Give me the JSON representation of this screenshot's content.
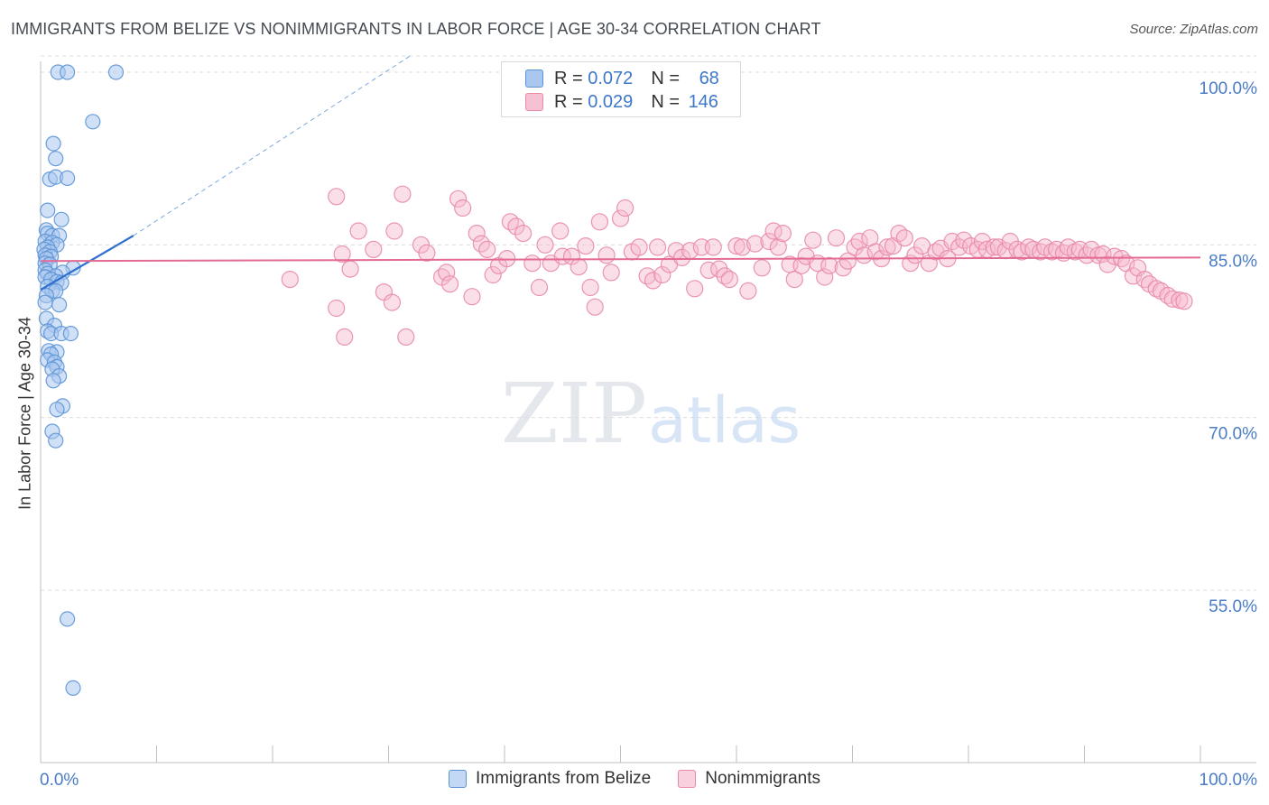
{
  "title": "IMMIGRANTS FROM BELIZE VS NONIMMIGRANTS IN LABOR FORCE | AGE 30-34 CORRELATION CHART",
  "source": "Source: ZipAtlas.com",
  "watermark": {
    "zip": "ZIP",
    "atlas": "atlas"
  },
  "colors": {
    "blue_fill": "#a9c7ef",
    "blue_stroke": "#5b93d6",
    "blue_line": "#2f6fcf",
    "pink_fill": "#f6b8cb",
    "pink_stroke": "#e88aa8",
    "pink_line": "#e36b93",
    "axis_text": "#4a7cc7",
    "grid": "#dcdcdc"
  },
  "legend_top": {
    "rows": [
      {
        "series": "blue",
        "r_label": "R = ",
        "r_value": "0.072",
        "n_label": "N = ",
        "n_value": "68"
      },
      {
        "series": "pink",
        "r_label": "R = ",
        "r_value": "0.029",
        "n_label": "N = ",
        "n_value": "146"
      }
    ]
  },
  "chart_data": {
    "type": "scatter",
    "title": "IMMIGRANTS FROM BELIZE VS NONIMMIGRANTS IN LABOR FORCE | AGE 30-34 CORRELATION CHART",
    "xlabel": "",
    "ylabel": "In Labor Force | Age 30-34",
    "xlim": [
      0,
      100
    ],
    "ylim": [
      40,
      101.5
    ],
    "x_tick_labels": [
      "0.0%",
      "100.0%"
    ],
    "y_ticks": [
      100,
      85,
      70,
      55
    ],
    "y_tick_labels": [
      "100.0%",
      "85.0%",
      "70.0%",
      "55.0%"
    ],
    "grid": true,
    "legend": [
      "Immigrants from Belize",
      "Nonimmigrants"
    ],
    "series": [
      {
        "name": "Immigrants from Belize",
        "color": "blue",
        "R": 0.072,
        "N": 68,
        "trend": {
          "x": [
            0,
            8
          ],
          "y": [
            81.1,
            85.8
          ]
        },
        "trend_extension": {
          "x": [
            8,
            32
          ],
          "y": [
            85.8,
            101.5
          ]
        },
        "points": [
          [
            1.5,
            100
          ],
          [
            2.3,
            100
          ],
          [
            6.5,
            100
          ],
          [
            4.5,
            95.7
          ],
          [
            1.1,
            93.8
          ],
          [
            1.3,
            92.5
          ],
          [
            0.8,
            90.7
          ],
          [
            1.3,
            90.9
          ],
          [
            2.3,
            90.8
          ],
          [
            0.6,
            88
          ],
          [
            1.8,
            87.2
          ],
          [
            0.5,
            86.3
          ],
          [
            0.6,
            86
          ],
          [
            1.0,
            85.8
          ],
          [
            1.6,
            85.8
          ],
          [
            0.4,
            85.3
          ],
          [
            1.0,
            85.2
          ],
          [
            1.4,
            85
          ],
          [
            0.6,
            84.8
          ],
          [
            0.3,
            84.6
          ],
          [
            0.8,
            84.4
          ],
          [
            0.4,
            84.1
          ],
          [
            0.9,
            84
          ],
          [
            0.5,
            83.8
          ],
          [
            0.4,
            83.4
          ],
          [
            0.8,
            83.3
          ],
          [
            2.8,
            83
          ],
          [
            0.4,
            82.8
          ],
          [
            0.6,
            82.5
          ],
          [
            1.9,
            82.6
          ],
          [
            1.3,
            82.3
          ],
          [
            0.4,
            82.2
          ],
          [
            0.9,
            82
          ],
          [
            1.4,
            81.8
          ],
          [
            1.8,
            81.7
          ],
          [
            0.6,
            81.4
          ],
          [
            1.0,
            81
          ],
          [
            1.3,
            81
          ],
          [
            0.5,
            80.6
          ],
          [
            0.4,
            80
          ],
          [
            1.6,
            79.8
          ],
          [
            0.5,
            78.6
          ],
          [
            1.2,
            78
          ],
          [
            0.6,
            77.5
          ],
          [
            0.9,
            77.3
          ],
          [
            1.8,
            77.3
          ],
          [
            2.6,
            77.3
          ],
          [
            0.7,
            75.8
          ],
          [
            1.4,
            75.7
          ],
          [
            0.9,
            75.5
          ],
          [
            0.6,
            75
          ],
          [
            1.2,
            74.8
          ],
          [
            1.4,
            74.4
          ],
          [
            1.0,
            74.2
          ],
          [
            1.6,
            73.6
          ],
          [
            1.1,
            73.2
          ],
          [
            1.9,
            71
          ],
          [
            1.4,
            70.7
          ],
          [
            1.0,
            68.8
          ],
          [
            1.3,
            68
          ],
          [
            2.3,
            52.5
          ],
          [
            2.8,
            46.5
          ]
        ]
      },
      {
        "name": "Nonimmigrants",
        "color": "pink",
        "R": 0.029,
        "N": 146,
        "trend": {
          "x": [
            0,
            100
          ],
          "y": [
            83.6,
            83.9
          ]
        },
        "points": [
          [
            21.5,
            82
          ],
          [
            25.5,
            89.2
          ],
          [
            26,
            84.2
          ],
          [
            26.7,
            82.9
          ],
          [
            25.5,
            79.5
          ],
          [
            26.2,
            77
          ],
          [
            27.4,
            86.2
          ],
          [
            28.7,
            84.6
          ],
          [
            29.6,
            80.9
          ],
          [
            30.3,
            80
          ],
          [
            30.5,
            86.2
          ],
          [
            31.2,
            89.4
          ],
          [
            31.5,
            77
          ],
          [
            32.8,
            85
          ],
          [
            33.3,
            84.3
          ],
          [
            34.6,
            82.2
          ],
          [
            35,
            82.6
          ],
          [
            35.3,
            81.6
          ],
          [
            36,
            89
          ],
          [
            36.4,
            88.2
          ],
          [
            37.2,
            80.5
          ],
          [
            37.6,
            86
          ],
          [
            38,
            85.1
          ],
          [
            38.5,
            84.6
          ],
          [
            39,
            82.4
          ],
          [
            39.5,
            83.2
          ],
          [
            40.2,
            83.8
          ],
          [
            40.5,
            87
          ],
          [
            41,
            86.6
          ],
          [
            41.6,
            86
          ],
          [
            42.4,
            83.4
          ],
          [
            43,
            81.3
          ],
          [
            43.5,
            85
          ],
          [
            44,
            83.4
          ],
          [
            44.8,
            86.2
          ],
          [
            45,
            84
          ],
          [
            45.8,
            84
          ],
          [
            46.4,
            83.1
          ],
          [
            47,
            84.9
          ],
          [
            47.4,
            81.3
          ],
          [
            47.8,
            79.6
          ],
          [
            48.2,
            87
          ],
          [
            48.8,
            84.1
          ],
          [
            49.2,
            82.6
          ],
          [
            50,
            87.3
          ],
          [
            50.4,
            88.2
          ],
          [
            51,
            84.4
          ],
          [
            51.6,
            84.8
          ],
          [
            52.3,
            82.3
          ],
          [
            52.8,
            81.9
          ],
          [
            53.2,
            84.8
          ],
          [
            53.6,
            82.4
          ],
          [
            54.2,
            83.3
          ],
          [
            54.8,
            84.5
          ],
          [
            55.3,
            83.9
          ],
          [
            56,
            84.5
          ],
          [
            56.4,
            81.2
          ],
          [
            57,
            84.8
          ],
          [
            57.6,
            82.8
          ],
          [
            58,
            84.8
          ],
          [
            58.5,
            82.9
          ],
          [
            59,
            82.3
          ],
          [
            59.4,
            82
          ],
          [
            60,
            84.9
          ],
          [
            60.5,
            84.8
          ],
          [
            61,
            81
          ],
          [
            61.6,
            85.1
          ],
          [
            62.2,
            83
          ],
          [
            62.8,
            85.3
          ],
          [
            63.2,
            86.2
          ],
          [
            63.6,
            84.8
          ],
          [
            64,
            86
          ],
          [
            64.6,
            83.3
          ],
          [
            65,
            82
          ],
          [
            65.6,
            83.2
          ],
          [
            66,
            84
          ],
          [
            66.6,
            85.4
          ],
          [
            67,
            83.4
          ],
          [
            67.6,
            82.2
          ],
          [
            68,
            83.2
          ],
          [
            68.6,
            85.6
          ],
          [
            69.2,
            83
          ],
          [
            69.6,
            83.6
          ],
          [
            70.2,
            84.8
          ],
          [
            70.6,
            85.3
          ],
          [
            71,
            84.1
          ],
          [
            71.5,
            85.6
          ],
          [
            72,
            84.4
          ],
          [
            72.5,
            83.8
          ],
          [
            73,
            84.8
          ],
          [
            73.5,
            84.9
          ],
          [
            74,
            86
          ],
          [
            74.5,
            85.6
          ],
          [
            75,
            83.4
          ],
          [
            75.4,
            84.1
          ],
          [
            76,
            84.9
          ],
          [
            76.6,
            83.4
          ],
          [
            77.2,
            84.4
          ],
          [
            77.6,
            84.7
          ],
          [
            78.2,
            83.8
          ],
          [
            78.6,
            85.3
          ],
          [
            79.2,
            84.8
          ],
          [
            79.6,
            85.4
          ],
          [
            80.2,
            84.9
          ],
          [
            80.8,
            84.6
          ],
          [
            81.2,
            85.3
          ],
          [
            81.6,
            84.6
          ],
          [
            82.2,
            84.8
          ],
          [
            82.6,
            84.8
          ],
          [
            83.2,
            84.5
          ],
          [
            83.6,
            85.3
          ],
          [
            84.2,
            84.6
          ],
          [
            84.6,
            84.4
          ],
          [
            85.2,
            84.8
          ],
          [
            85.6,
            84.6
          ],
          [
            86.2,
            84.4
          ],
          [
            86.6,
            84.8
          ],
          [
            87.2,
            84.4
          ],
          [
            87.6,
            84.6
          ],
          [
            88.2,
            84.3
          ],
          [
            88.6,
            84.8
          ],
          [
            89.2,
            84.4
          ],
          [
            89.6,
            84.6
          ],
          [
            90.2,
            84.1
          ],
          [
            90.6,
            84.6
          ],
          [
            91.2,
            84.1
          ],
          [
            91.6,
            84.2
          ],
          [
            92,
            83.3
          ],
          [
            92.6,
            84
          ],
          [
            93.2,
            83.8
          ],
          [
            93.6,
            83.4
          ],
          [
            94.2,
            82.3
          ],
          [
            94.6,
            83
          ],
          [
            95.2,
            82
          ],
          [
            95.6,
            81.6
          ],
          [
            96.2,
            81.2
          ],
          [
            96.6,
            81
          ],
          [
            97.2,
            80.6
          ],
          [
            97.6,
            80.3
          ],
          [
            98.2,
            80.2
          ],
          [
            98.6,
            80.1
          ]
        ]
      }
    ]
  },
  "bottom_legend": [
    {
      "series": "blue",
      "label": "Immigrants from Belize"
    },
    {
      "series": "pink",
      "label": "Nonimmigrants"
    }
  ]
}
